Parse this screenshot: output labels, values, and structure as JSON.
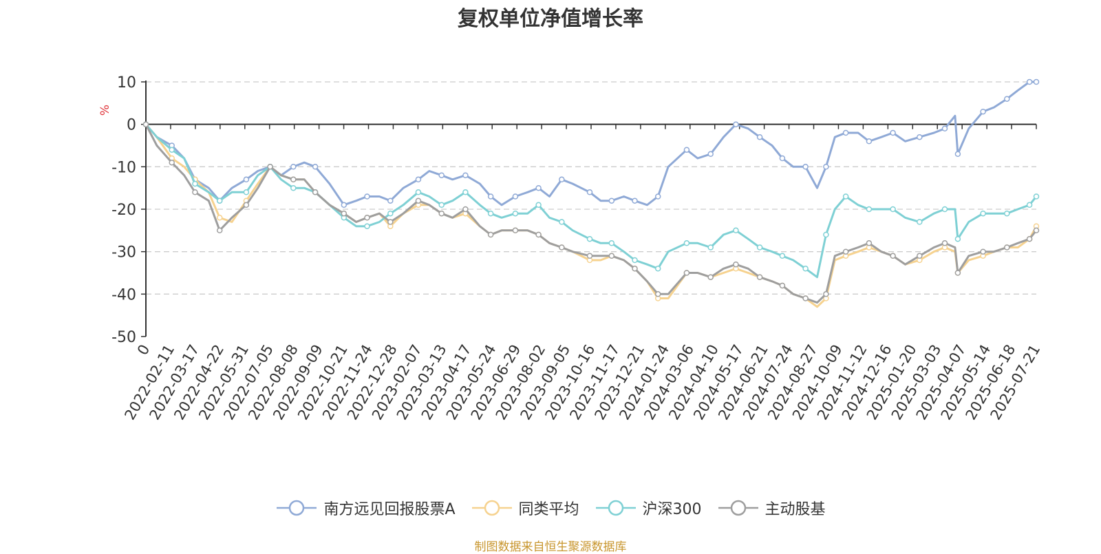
{
  "title": "复权单位净值增长率",
  "source_note": "制图数据来自恒生聚源数据库",
  "colors": {
    "source": "#c8962e",
    "ylabel": "#e0363b",
    "axis": "#333333",
    "grid": "#cccccc"
  },
  "chart_data": {
    "type": "line",
    "title": "复权单位净值增长率",
    "ylabel": "%",
    "ylim": [
      -50,
      10
    ],
    "yticks": [
      10,
      0,
      -10,
      -20,
      -30,
      -40,
      -50
    ],
    "grid": "y-dashed",
    "legend_position": "bottom-center",
    "x_tick_labels": [
      "0",
      "2022-02-11",
      "2022-03-17",
      "2022-04-22",
      "2022-05-31",
      "2022-07-05",
      "2022-08-08",
      "2022-09-09",
      "2022-10-21",
      "2022-11-24",
      "2022-12-28",
      "2023-02-07",
      "2023-03-13",
      "2023-04-17",
      "2023-05-24",
      "2023-06-29",
      "2023-08-02",
      "2023-09-05",
      "2023-10-16",
      "2023-11-17",
      "2023-12-21",
      "2024-01-24",
      "2024-03-06",
      "2024-04-10",
      "2024-05-17",
      "2024-06-21",
      "2024-07-24",
      "2024-08-27",
      "2024-10-09",
      "2024-11-12",
      "2024-12-16",
      "2025-01-20",
      "2025-03-03",
      "2025-04-07",
      "2025-05-14",
      "2025-06-18",
      "2025-07-21"
    ],
    "x": [
      "2022-01-04",
      "2022-01-20",
      "2022-02-11",
      "2022-03-01",
      "2022-03-17",
      "2022-04-06",
      "2022-04-22",
      "2022-05-10",
      "2022-05-31",
      "2022-06-17",
      "2022-07-05",
      "2022-07-21",
      "2022-08-08",
      "2022-08-24",
      "2022-09-09",
      "2022-09-30",
      "2022-10-21",
      "2022-11-08",
      "2022-11-24",
      "2022-12-12",
      "2022-12-28",
      "2023-01-16",
      "2023-02-07",
      "2023-02-23",
      "2023-03-13",
      "2023-03-29",
      "2023-04-17",
      "2023-05-08",
      "2023-05-24",
      "2023-06-09",
      "2023-06-29",
      "2023-07-17",
      "2023-08-02",
      "2023-08-18",
      "2023-09-05",
      "2023-09-21",
      "2023-10-16",
      "2023-11-01",
      "2023-11-17",
      "2023-12-05",
      "2023-12-21",
      "2024-01-08",
      "2024-01-24",
      "2024-02-08",
      "2024-03-06",
      "2024-03-22",
      "2024-04-10",
      "2024-04-29",
      "2024-05-17",
      "2024-06-04",
      "2024-06-21",
      "2024-07-09",
      "2024-07-24",
      "2024-08-09",
      "2024-08-27",
      "2024-09-13",
      "2024-09-26",
      "2024-10-09",
      "2024-10-25",
      "2024-11-12",
      "2024-11-28",
      "2024-12-16",
      "2025-01-02",
      "2025-01-20",
      "2025-02-10",
      "2025-03-03",
      "2025-03-19",
      "2025-04-03",
      "2025-04-07",
      "2025-04-23",
      "2025-05-14",
      "2025-05-30",
      "2025-06-18",
      "2025-07-04",
      "2025-07-21",
      "2025-07-31"
    ],
    "series": [
      {
        "name": "南方远见回报股票A",
        "color": "#8fa9d6",
        "values": [
          0,
          -3,
          -5,
          -8,
          -13,
          -15,
          -18,
          -15,
          -13,
          -11,
          -10,
          -12,
          -10,
          -9,
          -10,
          -14,
          -19,
          -18,
          -17,
          -17,
          -18,
          -15,
          -13,
          -11,
          -12,
          -13,
          -12,
          -14,
          -17,
          -19,
          -17,
          -16,
          -15,
          -17,
          -13,
          -14,
          -16,
          -18,
          -18,
          -17,
          -18,
          -19,
          -17,
          -10,
          -6,
          -8,
          -7,
          -3,
          0,
          -1,
          -3,
          -5,
          -8,
          -10,
          -10,
          -15,
          -10,
          -3,
          -2,
          -2,
          -4,
          -3,
          -2,
          -4,
          -3,
          -2,
          -1,
          2,
          -7,
          -1,
          3,
          4,
          6,
          8,
          10,
          10
        ]
      },
      {
        "name": "同类平均",
        "color": "#f6d28f",
        "values": [
          0,
          -3,
          -8,
          -10,
          -13,
          -16,
          -22,
          -23,
          -18,
          -14,
          -10,
          -12,
          -13,
          -13,
          -16,
          -19,
          -21,
          -23,
          -22,
          -21,
          -24,
          -21,
          -19,
          -19,
          -21,
          -22,
          -21,
          -24,
          -26,
          -25,
          -25,
          -25,
          -26,
          -28,
          -29,
          -30,
          -32,
          -32,
          -31,
          -32,
          -34,
          -37,
          -41,
          -41,
          -35,
          -35,
          -36,
          -35,
          -34,
          -35,
          -36,
          -37,
          -38,
          -40,
          -41,
          -43,
          -41,
          -32,
          -31,
          -30,
          -29,
          -30,
          -31,
          -33,
          -32,
          -30,
          -29,
          -30,
          -35,
          -32,
          -31,
          -30,
          -29,
          -29,
          -27,
          -24
        ]
      },
      {
        "name": "沪深300",
        "color": "#7ed0d4",
        "values": [
          0,
          -3,
          -6,
          -8,
          -14,
          -16,
          -18,
          -16,
          -16,
          -12,
          -10,
          -13,
          -15,
          -15,
          -16,
          -19,
          -22,
          -24,
          -24,
          -23,
          -21,
          -19,
          -16,
          -17,
          -19,
          -18,
          -16,
          -19,
          -21,
          -22,
          -21,
          -21,
          -19,
          -22,
          -23,
          -25,
          -27,
          -28,
          -28,
          -30,
          -32,
          -33,
          -34,
          -30,
          -28,
          -28,
          -29,
          -26,
          -25,
          -27,
          -29,
          -30,
          -31,
          -32,
          -34,
          -36,
          -26,
          -20,
          -17,
          -19,
          -20,
          -20,
          -20,
          -22,
          -23,
          -21,
          -20,
          -20,
          -27,
          -23,
          -21,
          -21,
          -21,
          -20,
          -19,
          -17
        ]
      },
      {
        "name": "主动股基",
        "color": "#9e9e9e",
        "values": [
          0,
          -5,
          -9,
          -12,
          -16,
          -18,
          -25,
          -22,
          -19,
          -15,
          -10,
          -12,
          -13,
          -13,
          -16,
          -19,
          -21,
          -23,
          -22,
          -21,
          -23,
          -21,
          -18,
          -19,
          -21,
          -22,
          -20,
          -24,
          -26,
          -25,
          -25,
          -25,
          -26,
          -28,
          -29,
          -30,
          -31,
          -31,
          -31,
          -32,
          -34,
          -37,
          -40,
          -40,
          -35,
          -35,
          -36,
          -34,
          -33,
          -34,
          -36,
          -37,
          -38,
          -40,
          -41,
          -42,
          -40,
          -31,
          -30,
          -29,
          -28,
          -30,
          -31,
          -33,
          -31,
          -29,
          -28,
          -29,
          -35,
          -31,
          -30,
          -30,
          -29,
          -28,
          -27,
          -25
        ]
      }
    ]
  }
}
